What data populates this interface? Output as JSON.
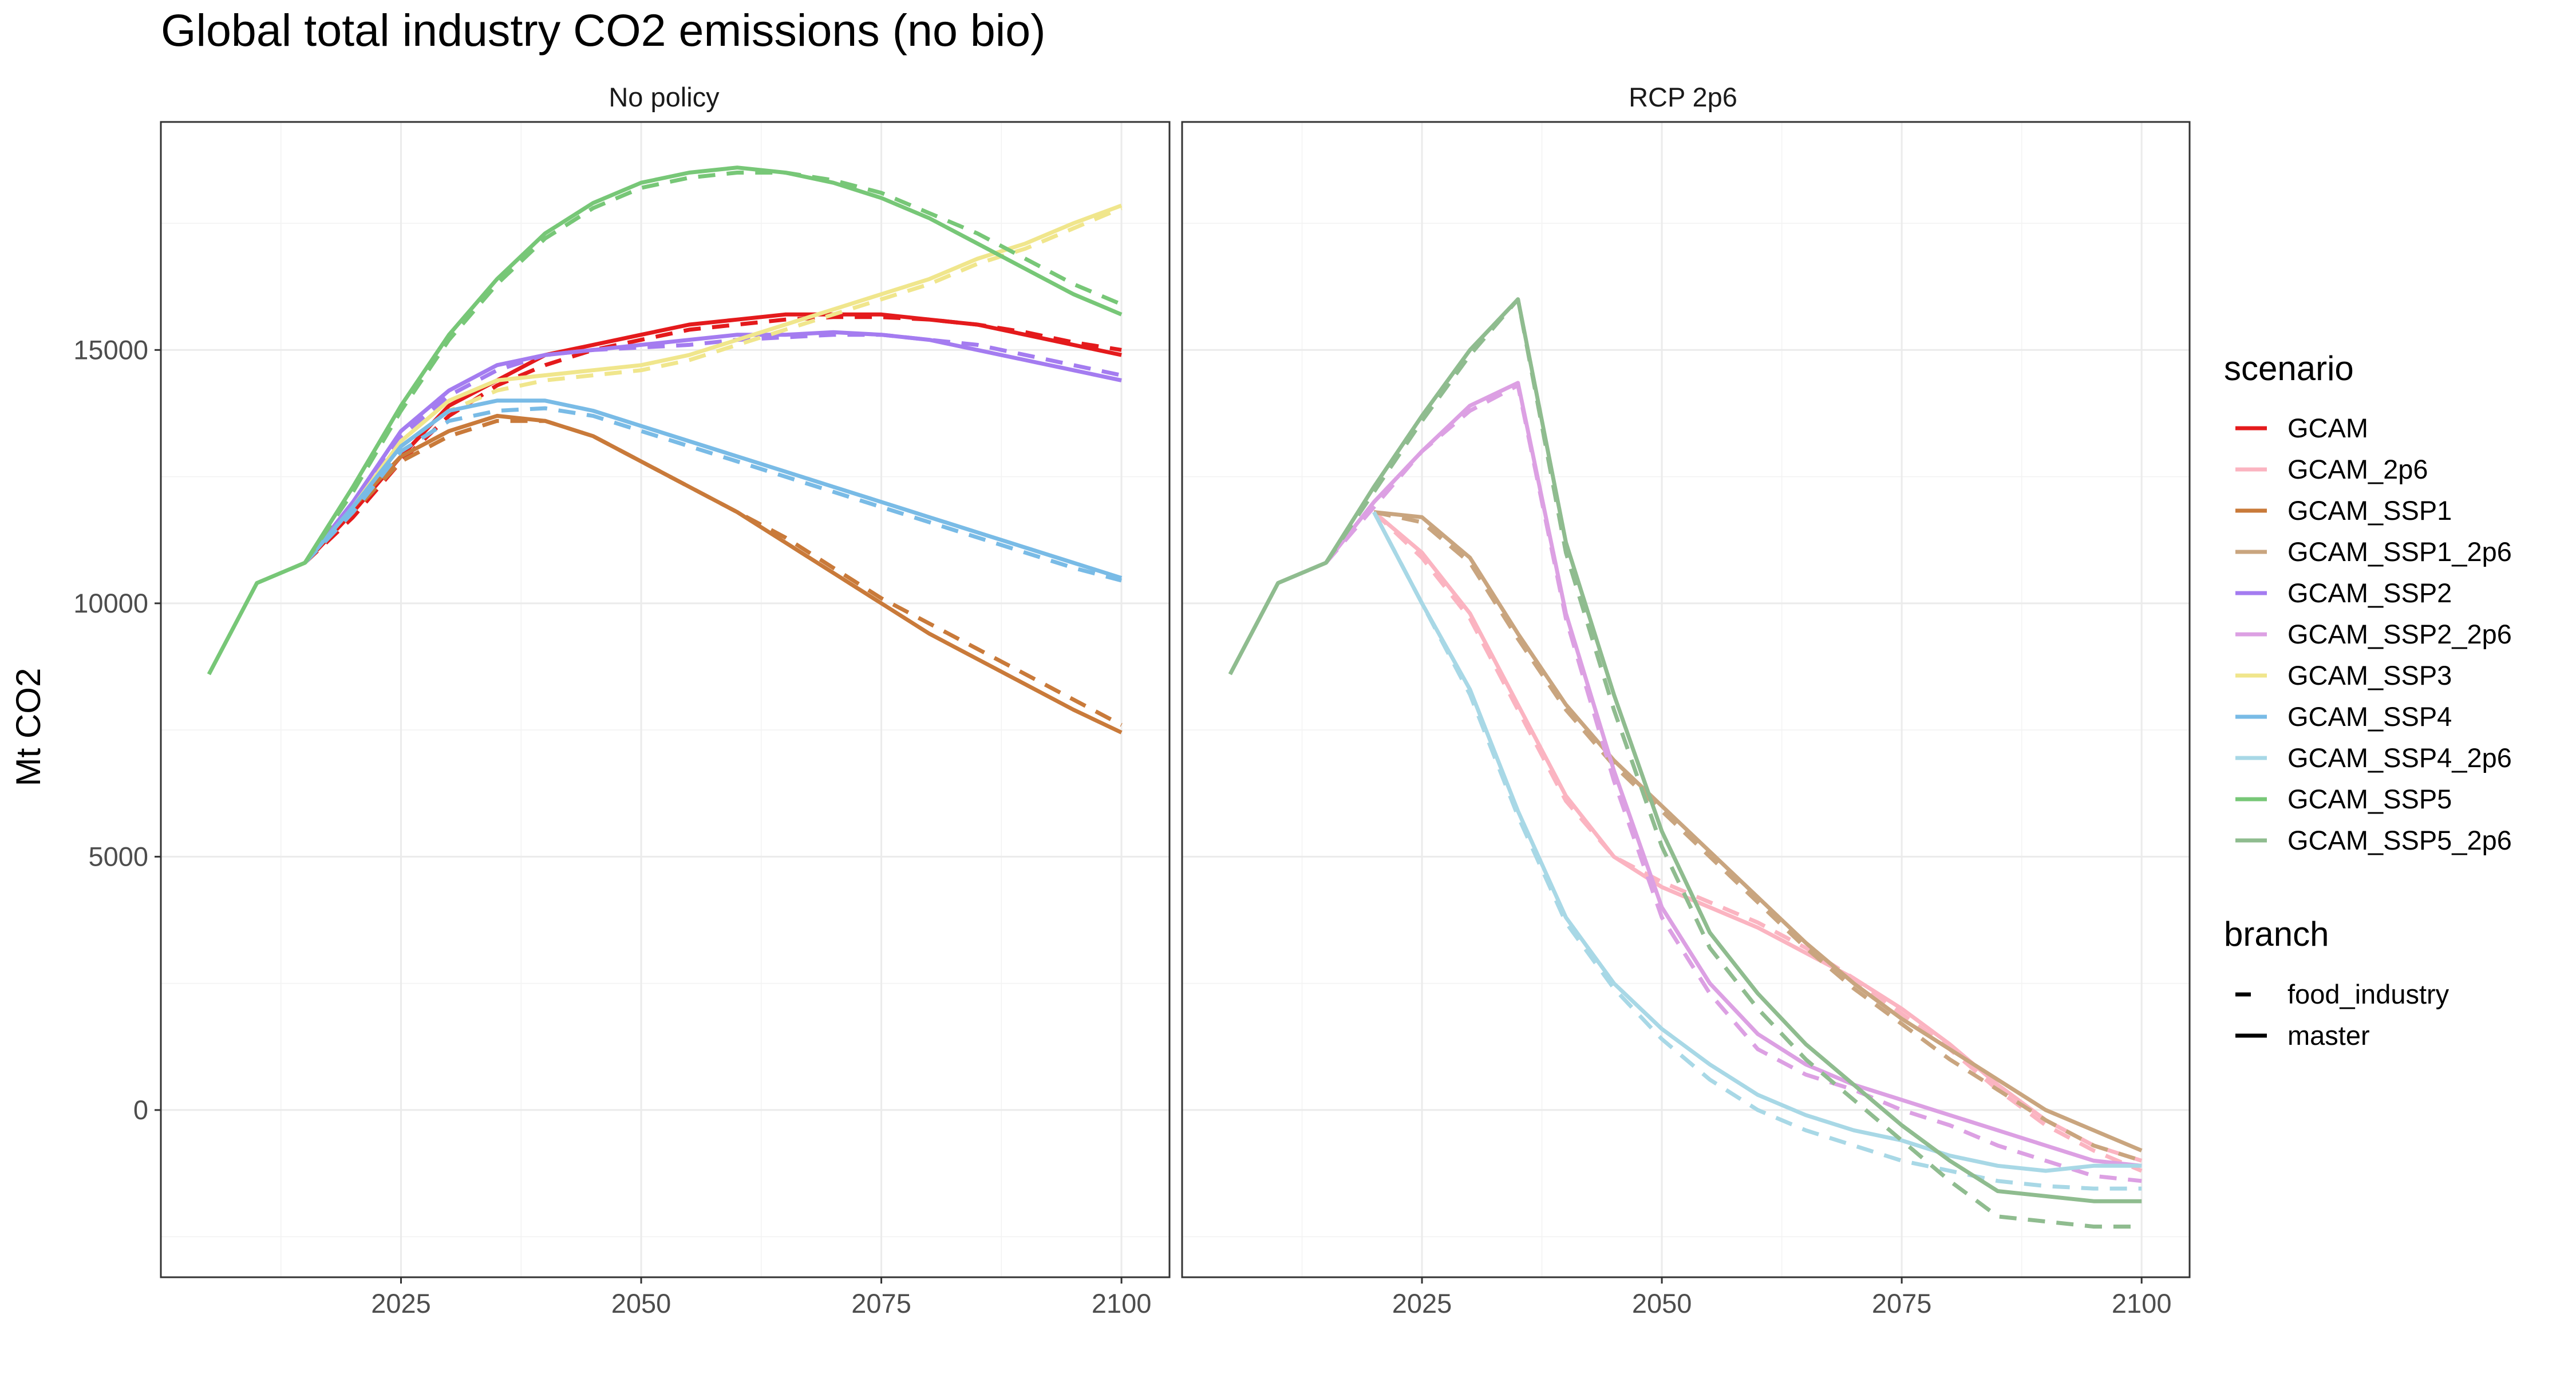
{
  "chart_data": {
    "type": "line",
    "title": "Global total industry CO2 emissions (no bio)",
    "ylabel": "Mt CO2",
    "xlabel": "",
    "xlim": [
      2000,
      2105
    ],
    "ylim": [
      -3300,
      19500
    ],
    "x_ticks": [
      2025,
      2050,
      2075,
      2100
    ],
    "y_ticks": [
      0,
      5000,
      10000,
      15000
    ],
    "grid": true,
    "panels": [
      {
        "id": "nopolicy",
        "label": "No policy"
      },
      {
        "id": "rcp",
        "label": "RCP 2p6"
      }
    ],
    "legend": {
      "placement": "right",
      "scenario_title": "scenario",
      "branch_title": "branch",
      "scenarios": [
        {
          "name": "GCAM",
          "color": "#e41a1c"
        },
        {
          "name": "GCAM_2p6",
          "color": "#fbb4c1"
        },
        {
          "name": "GCAM_SSP1",
          "color": "#c97a3a"
        },
        {
          "name": "GCAM_SSP1_2p6",
          "color": "#c9a57f"
        },
        {
          "name": "GCAM_SSP2",
          "color": "#a47cf0"
        },
        {
          "name": "GCAM_SSP2_2p6",
          "color": "#dca0e3"
        },
        {
          "name": "GCAM_SSP3",
          "color": "#f0e68c"
        },
        {
          "name": "GCAM_SSP4",
          "color": "#79bbe6"
        },
        {
          "name": "GCAM_SSP4_2p6",
          "color": "#a8d8e6"
        },
        {
          "name": "GCAM_SSP5",
          "color": "#77c777"
        },
        {
          "name": "GCAM_SSP5_2p6",
          "color": "#8fbc8f"
        }
      ],
      "branches": [
        {
          "name": "food_industry",
          "dash": "dashed"
        },
        {
          "name": "master",
          "dash": "solid"
        }
      ]
    },
    "series": [
      {
        "panel": "nopolicy",
        "scenario": "GCAM",
        "branch": "master",
        "x": [
          2015,
          2020,
          2025,
          2030,
          2035,
          2040,
          2045,
          2050,
          2055,
          2060,
          2065,
          2070,
          2075,
          2080,
          2085,
          2090,
          2095,
          2100
        ],
        "y": [
          10800,
          11800,
          12900,
          13900,
          14400,
          14900,
          15100,
          15300,
          15500,
          15600,
          15700,
          15700,
          15700,
          15600,
          15500,
          15300,
          15100,
          14900
        ]
      },
      {
        "panel": "nopolicy",
        "scenario": "GCAM",
        "branch": "food_industry",
        "x": [
          2015,
          2020,
          2025,
          2030,
          2035,
          2040,
          2045,
          2050,
          2055,
          2060,
          2065,
          2070,
          2075,
          2080,
          2085,
          2090,
          2095,
          2100
        ],
        "y": [
          10800,
          11700,
          12800,
          13700,
          14300,
          14700,
          15000,
          15200,
          15400,
          15500,
          15600,
          15650,
          15650,
          15600,
          15500,
          15350,
          15150,
          15000
        ]
      },
      {
        "panel": "nopolicy",
        "scenario": "GCAM_SSP1",
        "branch": "master",
        "x": [
          2015,
          2020,
          2025,
          2030,
          2035,
          2040,
          2045,
          2050,
          2055,
          2060,
          2065,
          2070,
          2075,
          2080,
          2085,
          2090,
          2095,
          2100
        ],
        "y": [
          10800,
          11900,
          12900,
          13400,
          13700,
          13600,
          13300,
          12800,
          12300,
          11800,
          11200,
          10600,
          10000,
          9400,
          8900,
          8400,
          7900,
          7450
        ]
      },
      {
        "panel": "nopolicy",
        "scenario": "GCAM_SSP1",
        "branch": "food_industry",
        "x": [
          2015,
          2020,
          2025,
          2030,
          2035,
          2040,
          2045,
          2050,
          2055,
          2060,
          2065,
          2070,
          2075,
          2080,
          2085,
          2090,
          2095,
          2100
        ],
        "y": [
          10800,
          11800,
          12800,
          13300,
          13600,
          13600,
          13300,
          12800,
          12300,
          11800,
          11300,
          10700,
          10100,
          9600,
          9100,
          8600,
          8100,
          7600
        ]
      },
      {
        "panel": "nopolicy",
        "scenario": "GCAM_SSP2",
        "branch": "master",
        "x": [
          2015,
          2020,
          2025,
          2030,
          2035,
          2040,
          2045,
          2050,
          2055,
          2060,
          2065,
          2070,
          2075,
          2080,
          2085,
          2090,
          2095,
          2100
        ],
        "y": [
          10800,
          12000,
          13400,
          14200,
          14700,
          14900,
          15000,
          15100,
          15200,
          15300,
          15300,
          15350,
          15300,
          15200,
          15000,
          14800,
          14600,
          14400
        ]
      },
      {
        "panel": "nopolicy",
        "scenario": "GCAM_SSP2",
        "branch": "food_industry",
        "x": [
          2015,
          2020,
          2025,
          2030,
          2035,
          2040,
          2045,
          2050,
          2055,
          2060,
          2065,
          2070,
          2075,
          2080,
          2085,
          2090,
          2095,
          2100
        ],
        "y": [
          10800,
          12000,
          13300,
          14100,
          14600,
          14900,
          15000,
          15050,
          15100,
          15200,
          15250,
          15300,
          15300,
          15200,
          15100,
          14900,
          14700,
          14500
        ]
      },
      {
        "panel": "nopolicy",
        "scenario": "GCAM_SSP3",
        "branch": "master",
        "x": [
          2015,
          2020,
          2025,
          2030,
          2035,
          2040,
          2045,
          2050,
          2055,
          2060,
          2065,
          2070,
          2075,
          2080,
          2085,
          2090,
          2095,
          2100
        ],
        "y": [
          10800,
          11900,
          13200,
          14000,
          14400,
          14500,
          14600,
          14700,
          14900,
          15200,
          15500,
          15800,
          16100,
          16400,
          16800,
          17100,
          17500,
          17850
        ]
      },
      {
        "panel": "nopolicy",
        "scenario": "GCAM_SSP3",
        "branch": "food_industry",
        "x": [
          2015,
          2020,
          2025,
          2030,
          2035,
          2040,
          2045,
          2050,
          2055,
          2060,
          2065,
          2070,
          2075,
          2080,
          2085,
          2090,
          2095,
          2100
        ],
        "y": [
          10800,
          11800,
          13100,
          13800,
          14200,
          14400,
          14500,
          14600,
          14800,
          15100,
          15400,
          15700,
          16000,
          16300,
          16700,
          17000,
          17400,
          17800
        ]
      },
      {
        "panel": "nopolicy",
        "scenario": "GCAM_SSP4",
        "branch": "master",
        "x": [
          2015,
          2020,
          2025,
          2030,
          2035,
          2040,
          2045,
          2050,
          2055,
          2060,
          2065,
          2070,
          2075,
          2080,
          2085,
          2090,
          2095,
          2100
        ],
        "y": [
          10800,
          11900,
          13100,
          13800,
          14000,
          14000,
          13800,
          13500,
          13200,
          12900,
          12600,
          12300,
          12000,
          11700,
          11400,
          11100,
          10800,
          10500
        ]
      },
      {
        "panel": "nopolicy",
        "scenario": "GCAM_SSP4",
        "branch": "food_industry",
        "x": [
          2015,
          2020,
          2025,
          2030,
          2035,
          2040,
          2045,
          2050,
          2055,
          2060,
          2065,
          2070,
          2075,
          2080,
          2085,
          2090,
          2095,
          2100
        ],
        "y": [
          10800,
          11800,
          13000,
          13600,
          13800,
          13850,
          13700,
          13400,
          13100,
          12800,
          12500,
          12200,
          11900,
          11600,
          11300,
          11000,
          10700,
          10450
        ]
      },
      {
        "panel": "nopolicy",
        "scenario": "GCAM_SSP5",
        "branch": "master",
        "x": [
          2005,
          2010,
          2015,
          2020,
          2025,
          2030,
          2035,
          2040,
          2045,
          2050,
          2055,
          2060,
          2065,
          2070,
          2075,
          2080,
          2085,
          2090,
          2095,
          2100
        ],
        "y": [
          8600,
          10400,
          10800,
          12300,
          13900,
          15300,
          16400,
          17300,
          17900,
          18300,
          18500,
          18600,
          18500,
          18300,
          18000,
          17600,
          17100,
          16600,
          16100,
          15700
        ]
      },
      {
        "panel": "nopolicy",
        "scenario": "GCAM_SSP5",
        "branch": "food_industry",
        "x": [
          2015,
          2020,
          2025,
          2030,
          2035,
          2040,
          2045,
          2050,
          2055,
          2060,
          2065,
          2070,
          2075,
          2080,
          2085,
          2090,
          2095,
          2100
        ],
        "y": [
          10800,
          12200,
          13800,
          15200,
          16300,
          17200,
          17800,
          18200,
          18400,
          18500,
          18500,
          18350,
          18100,
          17700,
          17300,
          16800,
          16300,
          15900
        ]
      },
      {
        "panel": "rcp",
        "scenario": "GCAM_2p6",
        "branch": "master",
        "x": [
          2020,
          2025,
          2030,
          2035,
          2040,
          2045,
          2050,
          2055,
          2060,
          2065,
          2070,
          2075,
          2080,
          2085,
          2090,
          2095,
          2100
        ],
        "y": [
          11800,
          11000,
          9800,
          8000,
          6200,
          5000,
          4400,
          4000,
          3600,
          3100,
          2600,
          2000,
          1300,
          500,
          -200,
          -700,
          -1000
        ]
      },
      {
        "panel": "rcp",
        "scenario": "GCAM_2p6",
        "branch": "food_industry",
        "x": [
          2020,
          2025,
          2030,
          2035,
          2040,
          2045,
          2050,
          2055,
          2060,
          2065,
          2070,
          2075,
          2080,
          2085,
          2090,
          2095,
          2100
        ],
        "y": [
          11800,
          10900,
          9700,
          7900,
          6100,
          5000,
          4500,
          4100,
          3700,
          3200,
          2600,
          1900,
          1200,
          400,
          -300,
          -800,
          -1200
        ]
      },
      {
        "panel": "rcp",
        "scenario": "GCAM_SSP1_2p6",
        "branch": "master",
        "x": [
          2020,
          2025,
          2030,
          2035,
          2040,
          2045,
          2050,
          2055,
          2060,
          2065,
          2070,
          2075,
          2080,
          2085,
          2090,
          2095,
          2100
        ],
        "y": [
          11800,
          11700,
          10900,
          9400,
          8000,
          6900,
          6000,
          5100,
          4200,
          3300,
          2500,
          1800,
          1200,
          600,
          0,
          -400,
          -800
        ]
      },
      {
        "panel": "rcp",
        "scenario": "GCAM_SSP1_2p6",
        "branch": "food_industry",
        "x": [
          2020,
          2025,
          2030,
          2035,
          2040,
          2045,
          2050,
          2055,
          2060,
          2065,
          2070,
          2075,
          2080,
          2085,
          2090,
          2095,
          2100
        ],
        "y": [
          11800,
          11600,
          10800,
          9300,
          7900,
          6800,
          5900,
          5000,
          4100,
          3200,
          2400,
          1700,
          1000,
          400,
          -200,
          -700,
          -1000
        ]
      },
      {
        "panel": "rcp",
        "scenario": "GCAM_SSP2_2p6",
        "branch": "master",
        "x": [
          2015,
          2020,
          2025,
          2030,
          2035,
          2040,
          2045,
          2050,
          2055,
          2060,
          2065,
          2070,
          2075,
          2080,
          2085,
          2090,
          2095,
          2100
        ],
        "y": [
          10800,
          12000,
          13000,
          13900,
          14350,
          9800,
          6700,
          4000,
          2500,
          1500,
          900,
          500,
          200,
          -100,
          -400,
          -700,
          -1000,
          -1100
        ]
      },
      {
        "panel": "rcp",
        "scenario": "GCAM_SSP2_2p6",
        "branch": "food_industry",
        "x": [
          2015,
          2020,
          2025,
          2030,
          2035,
          2040,
          2045,
          2050,
          2055,
          2060,
          2065,
          2070,
          2075,
          2080,
          2085,
          2090,
          2095,
          2100
        ],
        "y": [
          10800,
          11900,
          13000,
          13800,
          14300,
          9700,
          6500,
          3800,
          2300,
          1200,
          700,
          400,
          0,
          -300,
          -700,
          -1000,
          -1300,
          -1400
        ]
      },
      {
        "panel": "rcp",
        "scenario": "GCAM_SSP4_2p6",
        "branch": "master",
        "x": [
          2020,
          2025,
          2030,
          2035,
          2040,
          2045,
          2050,
          2055,
          2060,
          2065,
          2070,
          2075,
          2080,
          2085,
          2090,
          2095,
          2100
        ],
        "y": [
          11800,
          10000,
          8300,
          5900,
          3800,
          2500,
          1600,
          900,
          300,
          -100,
          -400,
          -600,
          -900,
          -1100,
          -1200,
          -1100,
          -1100
        ]
      },
      {
        "panel": "rcp",
        "scenario": "GCAM_SSP4_2p6",
        "branch": "food_industry",
        "x": [
          2020,
          2025,
          2030,
          2035,
          2040,
          2045,
          2050,
          2055,
          2060,
          2065,
          2070,
          2075,
          2080,
          2085,
          2090,
          2095,
          2100
        ],
        "y": [
          11800,
          10000,
          8200,
          5800,
          3700,
          2400,
          1400,
          600,
          0,
          -400,
          -700,
          -1000,
          -1200,
          -1400,
          -1500,
          -1550,
          -1550
        ]
      },
      {
        "panel": "rcp",
        "scenario": "GCAM_SSP5_2p6",
        "branch": "master",
        "x": [
          2005,
          2010,
          2015,
          2020,
          2025,
          2030,
          2035,
          2040,
          2045,
          2050,
          2055,
          2060,
          2065,
          2070,
          2075,
          2080,
          2085,
          2090,
          2095,
          2100
        ],
        "y": [
          8600,
          10400,
          10800,
          12300,
          13700,
          15000,
          16000,
          11200,
          8200,
          5500,
          3500,
          2300,
          1300,
          500,
          -300,
          -1000,
          -1600,
          -1700,
          -1800,
          -1800
        ]
      },
      {
        "panel": "rcp",
        "scenario": "GCAM_SSP5_2p6",
        "branch": "food_industry",
        "x": [
          2015,
          2020,
          2025,
          2030,
          2035,
          2040,
          2045,
          2050,
          2055,
          2060,
          2065,
          2070,
          2075,
          2080,
          2085,
          2090,
          2095,
          2100
        ],
        "y": [
          10800,
          12200,
          13600,
          14900,
          16000,
          11000,
          7900,
          5200,
          3200,
          2000,
          1000,
          200,
          -600,
          -1400,
          -2100,
          -2200,
          -2300,
          -2300
        ]
      }
    ]
  }
}
